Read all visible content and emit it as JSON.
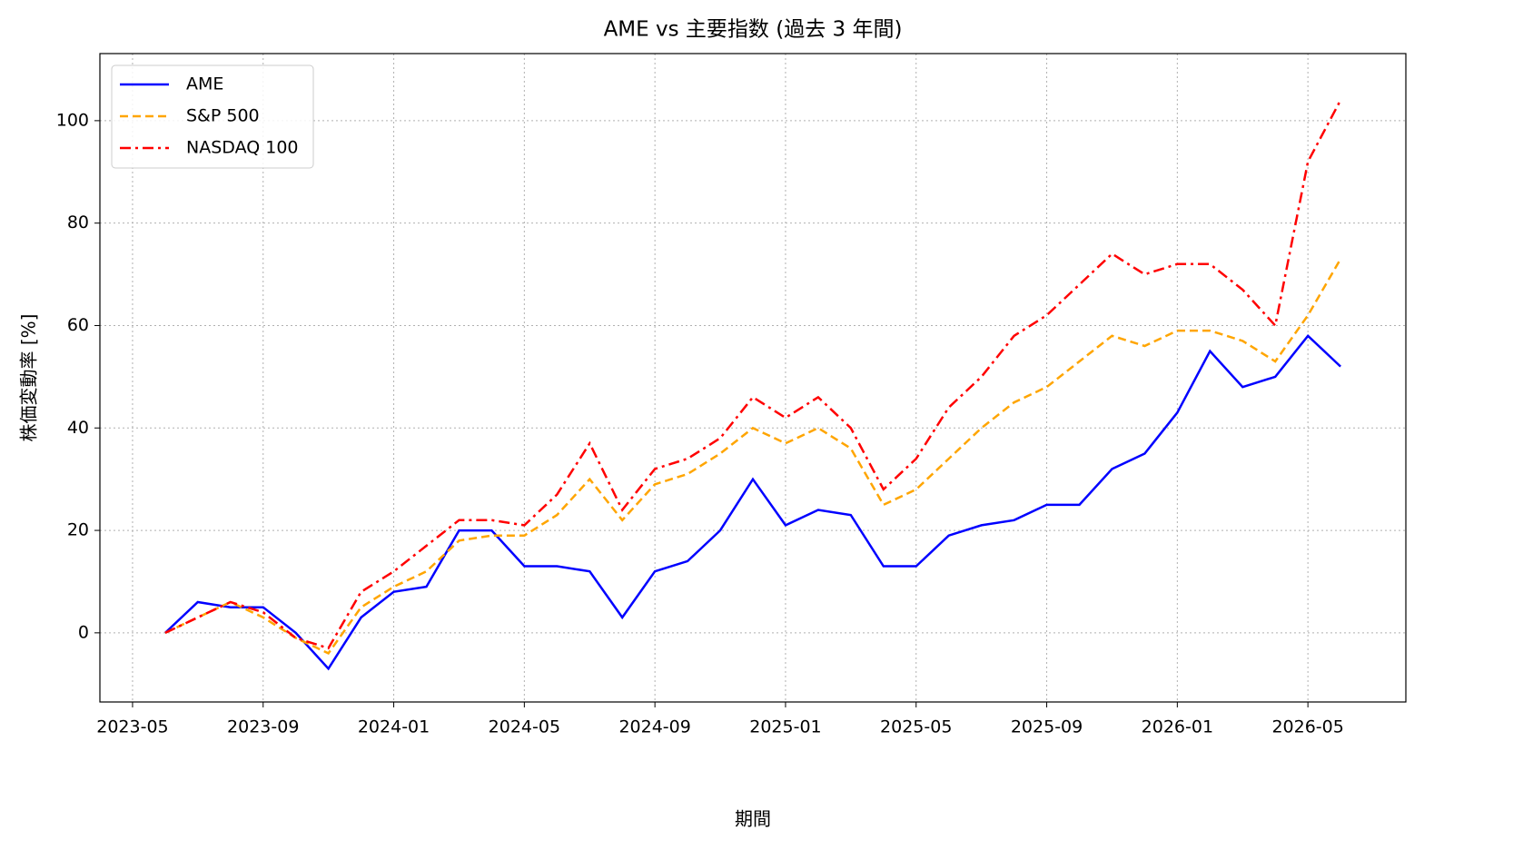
{
  "chart_data": {
    "type": "line",
    "title": "AME vs 主要指数 (過去 3 年間)",
    "xlabel": "期間",
    "ylabel": "株価変動率 [%]",
    "x": [
      "2023-06",
      "2023-07",
      "2023-08",
      "2023-09",
      "2023-10",
      "2023-11",
      "2023-12",
      "2024-01",
      "2024-02",
      "2024-03",
      "2024-04",
      "2024-05",
      "2024-06",
      "2024-07",
      "2024-08",
      "2024-09",
      "2024-10",
      "2024-11",
      "2024-12",
      "2025-01",
      "2025-02",
      "2025-03",
      "2025-04",
      "2025-05",
      "2025-06",
      "2025-07",
      "2025-08",
      "2025-09",
      "2025-10",
      "2025-11",
      "2025-12",
      "2026-01",
      "2026-02",
      "2026-03",
      "2026-04",
      "2026-05",
      "2026-06"
    ],
    "series": [
      {
        "name": "AME",
        "color": "#0000ff",
        "linestyle": "solid",
        "values": [
          0,
          6,
          5,
          5,
          0,
          -7,
          3,
          8,
          9,
          20,
          20,
          13,
          13,
          12,
          3,
          12,
          14,
          20,
          30,
          21,
          24,
          23,
          13,
          13,
          19,
          21,
          22,
          25,
          25,
          32,
          35,
          43,
          55,
          48,
          50,
          58,
          52
        ]
      },
      {
        "name": "S&P 500",
        "color": "#ffa500",
        "linestyle": "dashed",
        "values": [
          0,
          3,
          6,
          3,
          -1,
          -4,
          5,
          9,
          12,
          18,
          19,
          19,
          23,
          30,
          22,
          29,
          31,
          35,
          40,
          37,
          40,
          36,
          25,
          28,
          34,
          40,
          45,
          48,
          53,
          58,
          56,
          59,
          59,
          57,
          53,
          62,
          73
        ]
      },
      {
        "name": "NASDAQ 100",
        "color": "#ff0000",
        "linestyle": "dashdot",
        "values": [
          0,
          3,
          6,
          4,
          -1,
          -3,
          8,
          12,
          17,
          22,
          22,
          21,
          27,
          37,
          24,
          32,
          34,
          38,
          46,
          42,
          46,
          40,
          28,
          34,
          44,
          50,
          58,
          62,
          68,
          74,
          70,
          72,
          72,
          67,
          60,
          92,
          104
        ]
      }
    ],
    "xlim": [
      "2023-04",
      "2026-08"
    ],
    "xticks": [
      "2023-05",
      "2023-09",
      "2024-01",
      "2024-05",
      "2024-09",
      "2025-01",
      "2025-05",
      "2025-09",
      "2026-01",
      "2026-05"
    ],
    "ylim": [
      -13.5,
      113.1
    ],
    "yticks": [
      0,
      20,
      40,
      60,
      80,
      100
    ],
    "grid": true,
    "legend": "upper left"
  }
}
